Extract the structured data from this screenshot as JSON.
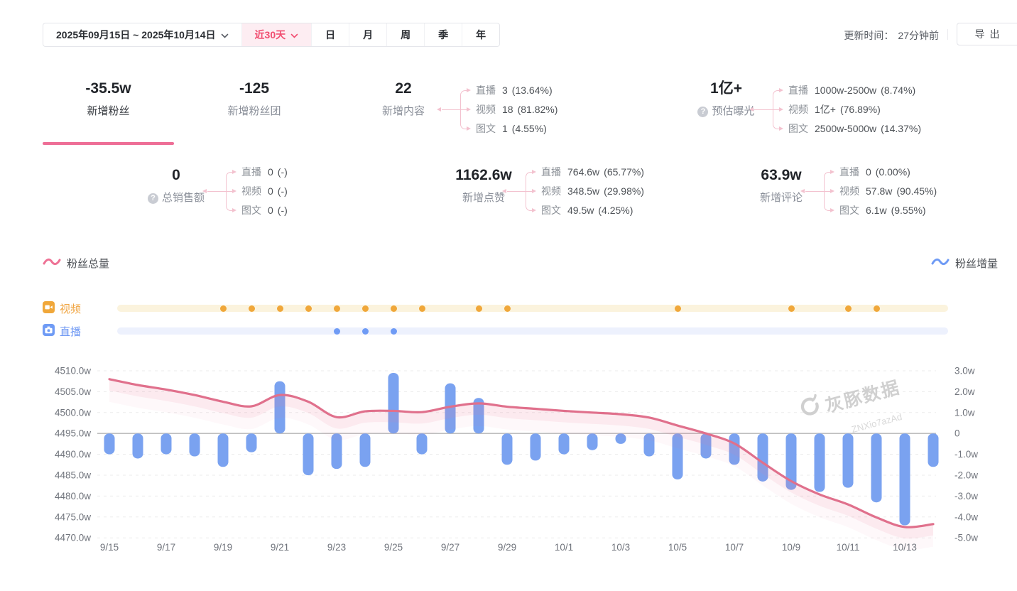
{
  "topbar": {
    "date_range": "2025年09月15日 ~ 2025年10月14日",
    "quick_range": "近30天",
    "period_tabs": [
      "日",
      "月",
      "周",
      "季",
      "年"
    ],
    "update_time_label": "更新时间：",
    "update_time_value": "27分钟前",
    "export_label": "导出"
  },
  "stats": {
    "row1": [
      {
        "value": "-35.5w",
        "label": "新增粉丝",
        "selected": true
      },
      {
        "value": "-125",
        "label": "新增粉丝团"
      },
      {
        "value": "22",
        "label": "新增内容",
        "breakdown": [
          {
            "name": "直播",
            "value": "3",
            "pct": "(13.64%)"
          },
          {
            "name": "视频",
            "value": "18",
            "pct": "(81.82%)"
          },
          {
            "name": "图文",
            "value": "1",
            "pct": "(4.55%)"
          }
        ]
      },
      {
        "value": "1亿+",
        "label": "预估曝光",
        "help": true,
        "breakdown": [
          {
            "name": "直播",
            "value": "1000w-2500w",
            "pct": "(8.74%)"
          },
          {
            "name": "视频",
            "value": "1亿+",
            "pct": "(76.89%)"
          },
          {
            "name": "图文",
            "value": "2500w-5000w",
            "pct": "(14.37%)"
          }
        ]
      }
    ],
    "row2": [
      {
        "value": "0",
        "label": "总销售额",
        "help": true,
        "breakdown": [
          {
            "name": "直播",
            "value": "0",
            "pct": "(-)"
          },
          {
            "name": "视频",
            "value": "0",
            "pct": "(-)"
          },
          {
            "name": "图文",
            "value": "0",
            "pct": "(-)"
          }
        ]
      },
      {
        "value": "1162.6w",
        "label": "新增点赞",
        "breakdown": [
          {
            "name": "直播",
            "value": "764.6w",
            "pct": "(65.77%)"
          },
          {
            "name": "视频",
            "value": "348.5w",
            "pct": "(29.98%)"
          },
          {
            "name": "图文",
            "value": "49.5w",
            "pct": "(4.25%)"
          }
        ]
      },
      {
        "value": "63.9w",
        "label": "新增评论",
        "breakdown": [
          {
            "name": "直播",
            "value": "0",
            "pct": "(0.00%)"
          },
          {
            "name": "视频",
            "value": "57.8w",
            "pct": "(90.45%)"
          },
          {
            "name": "图文",
            "value": "6.1w",
            "pct": "(9.55%)"
          }
        ]
      }
    ]
  },
  "legend": {
    "total_label": "粉丝总量",
    "delta_label": "粉丝增量"
  },
  "timeline": {
    "video_label": "视频",
    "live_label": "直播",
    "video_dates": [
      "9/19",
      "9/20",
      "9/21",
      "9/22",
      "9/23",
      "9/24",
      "9/25",
      "9/26",
      "9/28",
      "9/29",
      "10/5",
      "10/9",
      "10/11",
      "10/12"
    ],
    "live_dates": [
      "9/23",
      "9/24",
      "9/25"
    ]
  },
  "watermark": {
    "brand": "灰豚数据",
    "code": "ZNXio7azAd"
  },
  "colors": {
    "accent_pink": "#f14d70",
    "line_pink": "#e0708c",
    "bar_blue": "#7aa2f0",
    "video_orange": "#f0a73a",
    "live_blue": "#6f9bf5",
    "bracket_pink": "#f3c2cf"
  },
  "chart_data": {
    "type": "line+bar",
    "x": [
      "9/15",
      "9/16",
      "9/17",
      "9/18",
      "9/19",
      "9/20",
      "9/21",
      "9/22",
      "9/23",
      "9/24",
      "9/25",
      "9/26",
      "9/27",
      "9/28",
      "9/29",
      "9/30",
      "10/1",
      "10/2",
      "10/3",
      "10/4",
      "10/5",
      "10/6",
      "10/7",
      "10/8",
      "10/9",
      "10/10",
      "10/11",
      "10/12",
      "10/13",
      "10/14"
    ],
    "x_tick_labels": [
      "9/15",
      "9/17",
      "9/19",
      "9/21",
      "9/23",
      "9/25",
      "9/27",
      "9/29",
      "10/1",
      "10/3",
      "10/5",
      "10/7",
      "10/9",
      "10/11",
      "10/13"
    ],
    "series": [
      {
        "name": "粉丝总量",
        "type": "line",
        "axis": "left",
        "unit": "w",
        "color": "#e0708c",
        "values": [
          4508.0,
          4506.6,
          4505.5,
          4504.2,
          4502.6,
          4501.5,
          4504.2,
          4502.6,
          4498.9,
          4500.3,
          4500.4,
          4500.1,
          4501.4,
          4502.2,
          4501.4,
          4500.9,
          4500.4,
          4500.0,
          4499.6,
          4498.8,
          4496.9,
          4495.0,
          4492.6,
          4488.0,
          4483.6,
          4480.4,
          4478.0,
          4474.9,
          4472.6,
          4473.3
        ]
      },
      {
        "name": "粉丝增量",
        "type": "bar",
        "axis": "right",
        "unit": "w",
        "color": "#7aa2f0",
        "values": [
          -1.0,
          -1.2,
          -1.0,
          -1.1,
          -1.6,
          -0.9,
          2.5,
          -2.0,
          -1.7,
          -1.6,
          2.9,
          -1.0,
          2.4,
          1.7,
          -1.5,
          -1.3,
          -1.0,
          -0.8,
          -0.5,
          -1.1,
          -2.2,
          -1.2,
          -1.5,
          -2.3,
          -2.7,
          -2.8,
          -2.6,
          -3.3,
          -4.4,
          -1.6
        ]
      }
    ],
    "left_axis": {
      "labels": [
        "4510.0w",
        "4505.0w",
        "4500.0w",
        "4495.0w",
        "4490.0w",
        "4485.0w",
        "4480.0w",
        "4475.0w",
        "4470.0w"
      ],
      "min": 4470,
      "max": 4510,
      "step": 5
    },
    "right_axis": {
      "labels": [
        "3.0w",
        "2.0w",
        "1.0w",
        "0",
        "-1.0w",
        "-2.0w",
        "-3.0w",
        "-4.0w",
        "-5.0w"
      ],
      "min": -5,
      "max": 3,
      "step": 1
    },
    "zero_baseline_left": "4495.0w",
    "grid": "dashed",
    "legend_position": "top-left / top-right"
  }
}
